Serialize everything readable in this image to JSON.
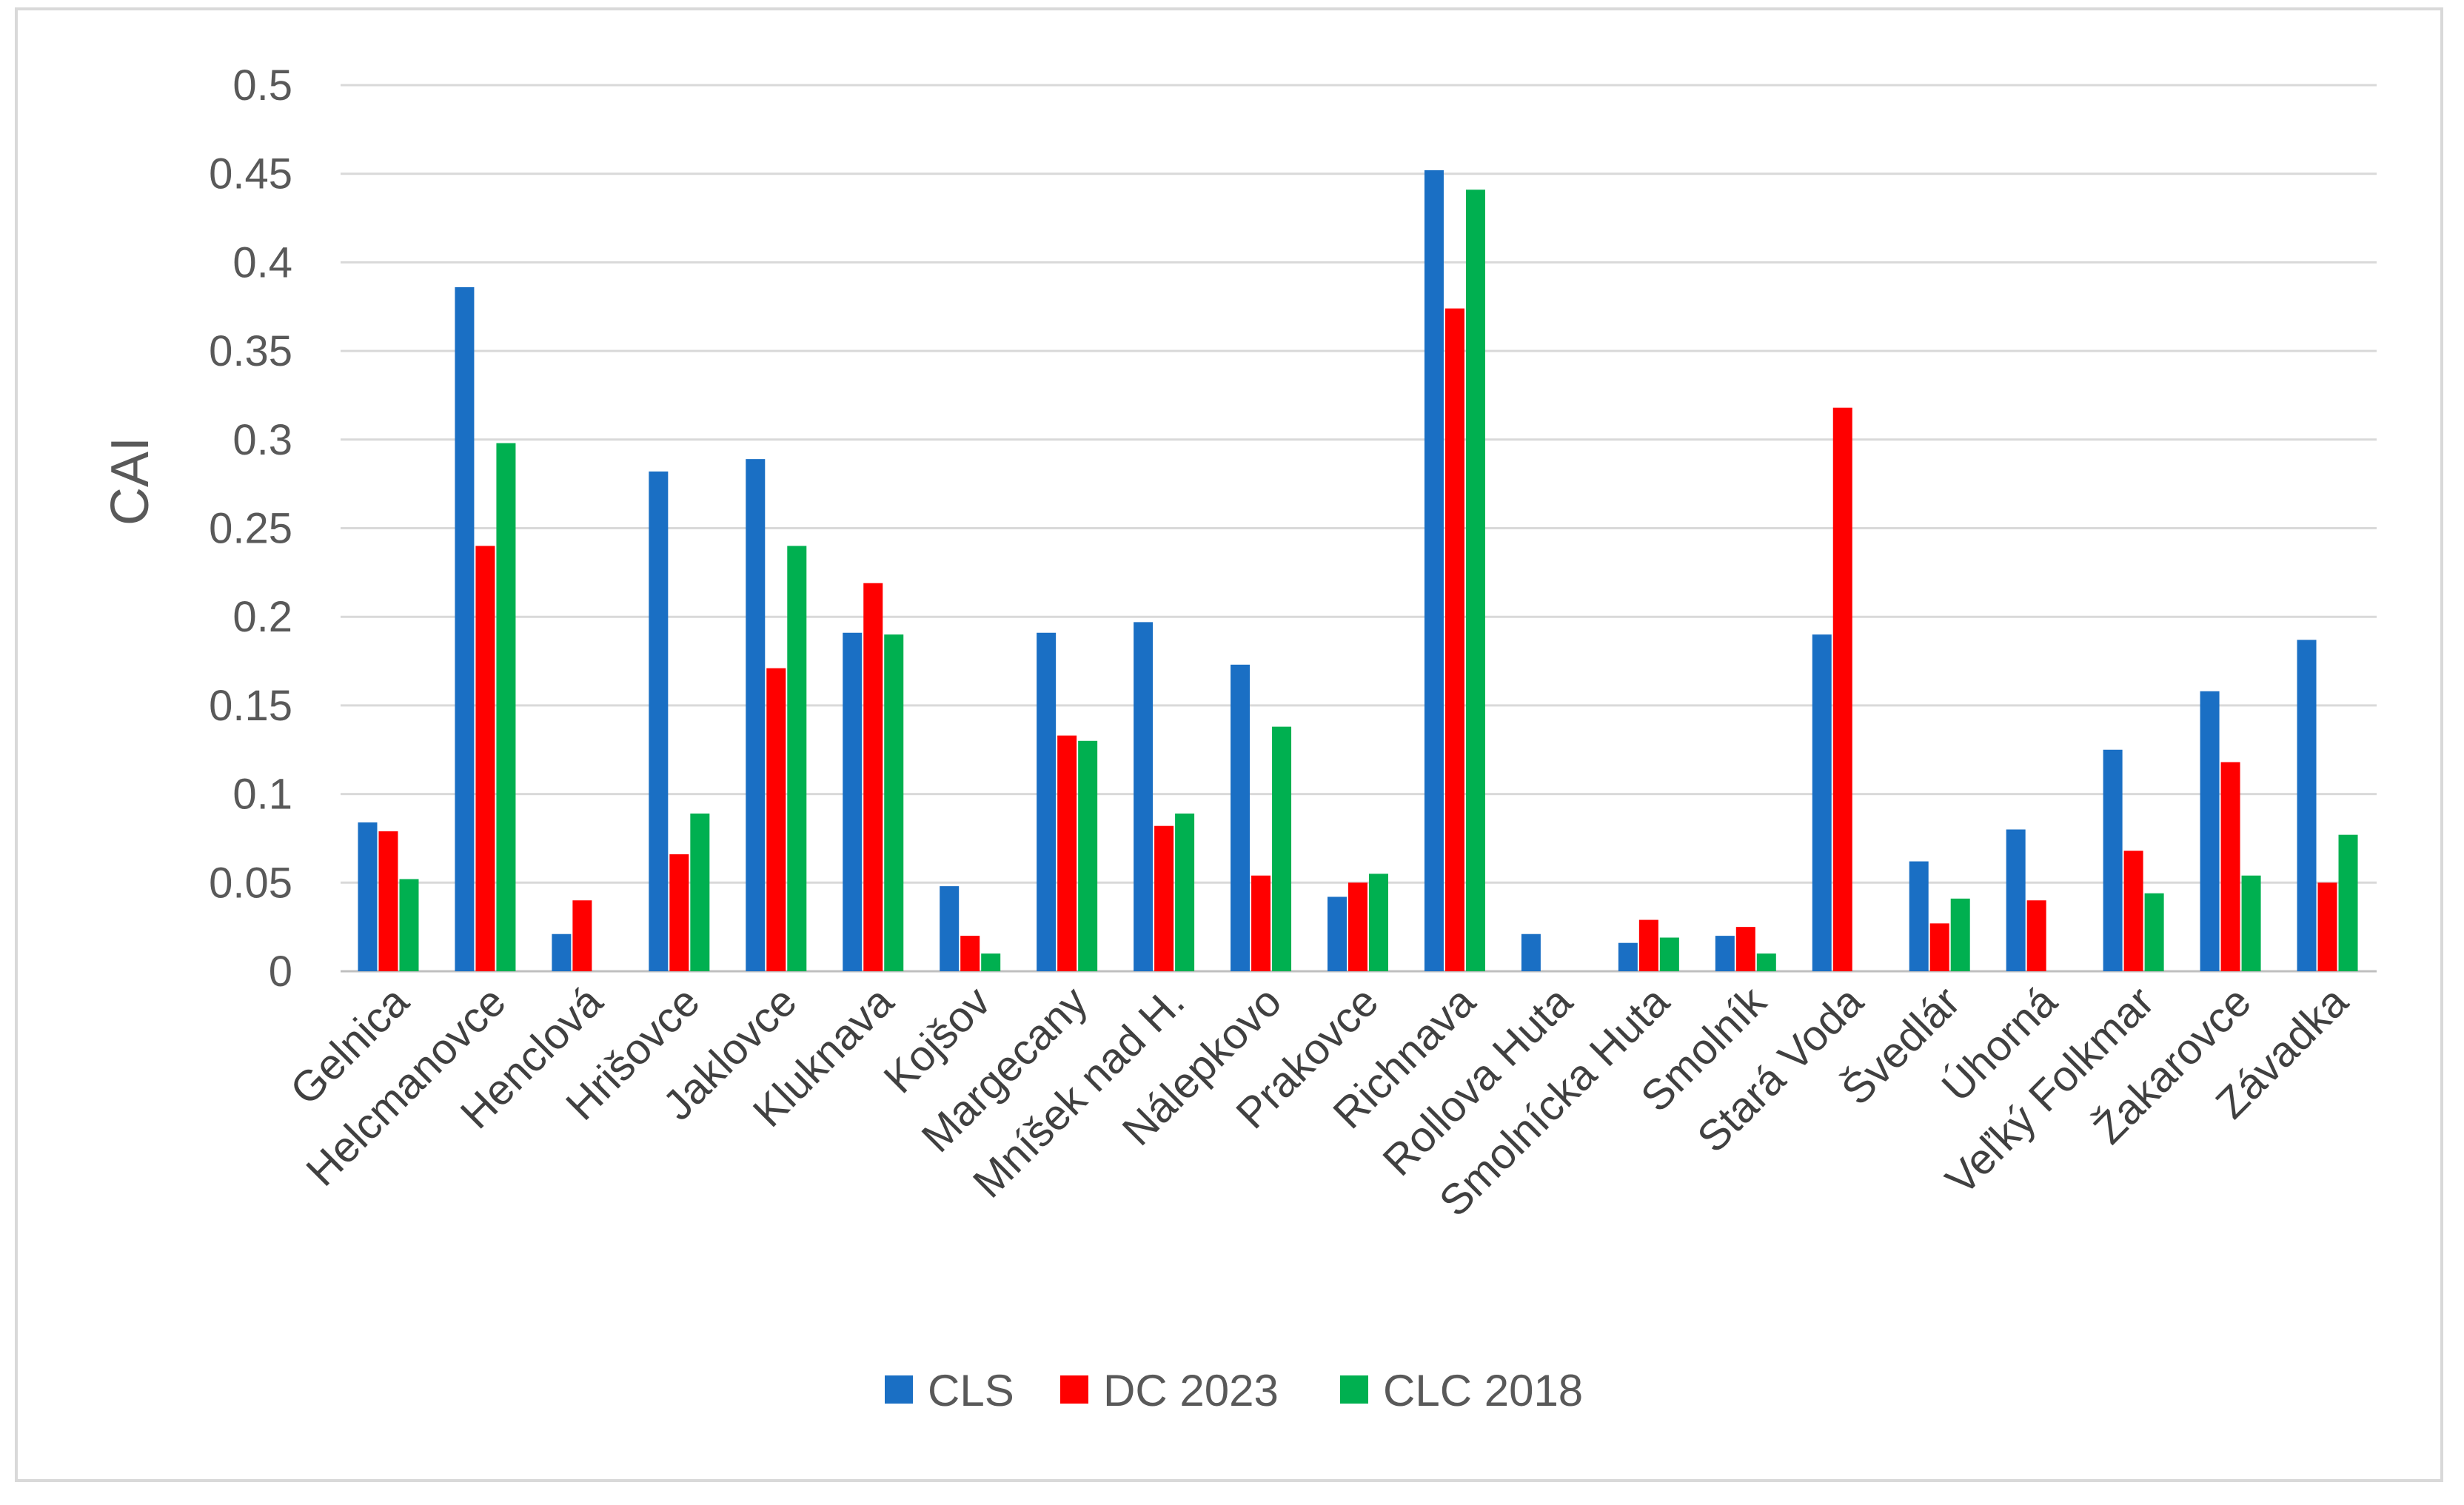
{
  "chart_data": {
    "type": "bar",
    "title": "",
    "xlabel": "",
    "ylabel": "CAI",
    "ylim": [
      0,
      0.5
    ],
    "yticks": [
      "0",
      "0.05",
      "0.1",
      "0.15",
      "0.2",
      "0.25",
      "0.3",
      "0.35",
      "0.4",
      "0.45",
      "0.5"
    ],
    "grid": true,
    "legend_position": "bottom",
    "categories": [
      "Gelnica",
      "Helcmanovce",
      "Henclová",
      "Hrišovce",
      "Jaklovce",
      "Kluknava",
      "Kojšov",
      "Margecany",
      "Mníšek nad H.",
      "Nálepkovo",
      "Prakovce",
      "Richnava",
      "Rollova Huta",
      "Smolnícka Huta",
      "Smolník",
      "Stará Voda",
      "Švedlár",
      "Úhorná",
      "Veľký Folkmar",
      "Žakarovce",
      "Závadka"
    ],
    "series": [
      {
        "name": "CLS",
        "color": "#1a6fc4",
        "values": [
          0.084,
          0.386,
          0.021,
          0.282,
          0.289,
          0.191,
          0.048,
          0.191,
          0.197,
          0.173,
          0.042,
          0.452,
          0.021,
          0.016,
          0.02,
          0.19,
          0.062,
          0.08,
          0.125,
          0.158,
          0.187
        ]
      },
      {
        "name": "DC 2023",
        "color": "#ff0000",
        "values": [
          0.079,
          0.24,
          0.04,
          0.066,
          0.171,
          0.219,
          0.02,
          0.133,
          0.082,
          0.054,
          0.05,
          0.374,
          0,
          0.029,
          0.025,
          0.318,
          0.027,
          0.04,
          0.068,
          0.118,
          0.05
        ]
      },
      {
        "name": "CLC 2018",
        "color": "#00b050",
        "values": [
          0.052,
          0.298,
          0,
          0.089,
          0.24,
          0.19,
          0.01,
          0.13,
          0.089,
          0.138,
          0.055,
          0.441,
          0,
          0.019,
          0.01,
          0,
          0.041,
          0,
          0.044,
          0.054,
          0.077
        ]
      }
    ]
  }
}
